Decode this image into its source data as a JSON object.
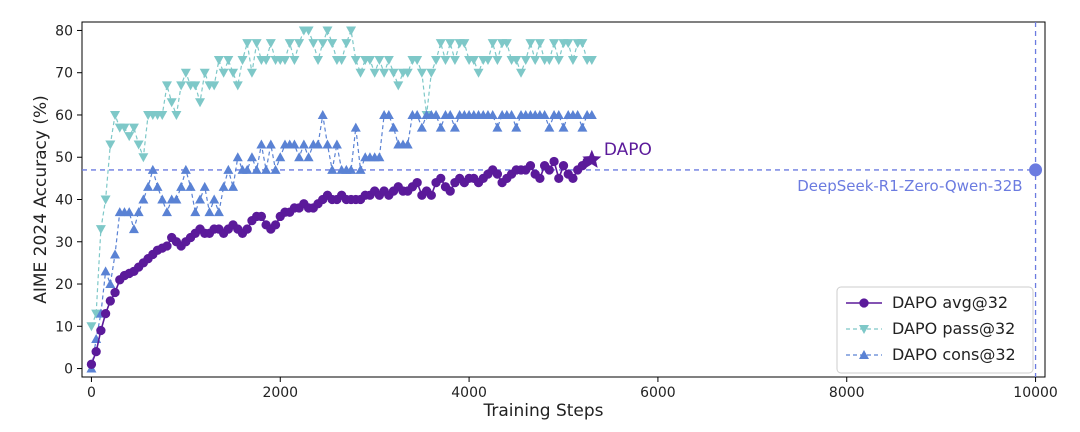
{
  "chart_data": {
    "type": "line",
    "xlabel": "Training Steps",
    "ylabel": "AIME 2024 Accuracy (%)",
    "xlim": [
      -100,
      10100
    ],
    "ylim": [
      -2,
      82
    ],
    "xticks": [
      0,
      2000,
      4000,
      6000,
      8000,
      10000
    ],
    "yticks": [
      0,
      10,
      20,
      30,
      40,
      50,
      60,
      70,
      80
    ],
    "grid": false,
    "legend_position": "lower-right",
    "series": [
      {
        "name": "DAPO avg@32",
        "color": "#5b1a9a",
        "line": "solid",
        "marker": "circle",
        "x": [
          0,
          50,
          100,
          150,
          200,
          250,
          300,
          350,
          400,
          450,
          500,
          550,
          600,
          650,
          700,
          750,
          800,
          850,
          900,
          950,
          1000,
          1050,
          1100,
          1150,
          1200,
          1250,
          1300,
          1350,
          1400,
          1450,
          1500,
          1550,
          1600,
          1650,
          1700,
          1750,
          1800,
          1850,
          1900,
          1950,
          2000,
          2050,
          2100,
          2150,
          2200,
          2250,
          2300,
          2350,
          2400,
          2450,
          2500,
          2550,
          2600,
          2650,
          2700,
          2750,
          2800,
          2850,
          2900,
          2950,
          3000,
          3050,
          3100,
          3150,
          3200,
          3250,
          3300,
          3350,
          3400,
          3450,
          3500,
          3550,
          3600,
          3650,
          3700,
          3750,
          3800,
          3850,
          3900,
          3950,
          4000,
          4050,
          4100,
          4150,
          4200,
          4250,
          4300,
          4350,
          4400,
          4450,
          4500,
          4550,
          4600,
          4650,
          4700,
          4750,
          4800,
          4850,
          4900,
          4950,
          5000,
          5050,
          5100,
          5150,
          5200,
          5250
        ],
        "values": [
          1,
          4,
          9,
          13,
          16,
          18,
          21,
          22,
          22.5,
          23,
          24,
          25,
          26,
          27,
          28,
          28.5,
          29,
          31,
          30,
          29,
          30,
          31,
          32,
          33,
          32,
          32,
          33,
          33,
          32,
          33,
          34,
          33,
          32,
          33,
          35,
          36,
          36,
          34,
          33,
          34,
          36,
          37,
          37,
          38,
          38,
          39,
          38,
          38,
          39,
          40,
          41,
          40,
          40,
          41,
          40,
          40,
          40,
          40,
          41,
          41,
          42,
          41,
          42,
          41,
          42,
          43,
          42,
          42,
          43,
          44,
          41,
          42,
          41,
          44,
          45,
          43,
          42,
          44,
          45,
          44,
          45,
          45,
          44,
          45,
          46,
          47,
          46,
          44,
          45,
          46,
          47,
          47,
          47,
          48,
          46,
          45,
          48,
          47,
          49,
          45,
          48,
          46,
          45,
          47,
          48,
          49
        ]
      },
      {
        "name": "DAPO pass@32",
        "color": "#7ec8c8",
        "line": "dashed",
        "marker": "triangle-down",
        "x": [
          0,
          50,
          100,
          150,
          200,
          250,
          300,
          350,
          400,
          450,
          500,
          550,
          600,
          650,
          700,
          750,
          800,
          850,
          900,
          950,
          1000,
          1050,
          1100,
          1150,
          1200,
          1250,
          1300,
          1350,
          1400,
          1450,
          1500,
          1550,
          1600,
          1650,
          1700,
          1750,
          1800,
          1850,
          1900,
          1950,
          2000,
          2050,
          2100,
          2150,
          2200,
          2250,
          2300,
          2350,
          2400,
          2450,
          2500,
          2550,
          2600,
          2650,
          2700,
          2750,
          2800,
          2850,
          2900,
          2950,
          3000,
          3050,
          3100,
          3150,
          3200,
          3250,
          3300,
          3350,
          3400,
          3450,
          3500,
          3550,
          3600,
          3650,
          3700,
          3750,
          3800,
          3850,
          3900,
          3950,
          4000,
          4050,
          4100,
          4150,
          4200,
          4250,
          4300,
          4350,
          4400,
          4450,
          4500,
          4550,
          4600,
          4650,
          4700,
          4750,
          4800,
          4850,
          4900,
          4950,
          5000,
          5050,
          5100,
          5150,
          5200,
          5250,
          5300
        ],
        "values": [
          10,
          13,
          33,
          40,
          53,
          60,
          57,
          57,
          55,
          57,
          53,
          50,
          60,
          60,
          60,
          60,
          67,
          63,
          60,
          67,
          70,
          67,
          67,
          63,
          70,
          67,
          67,
          73,
          70,
          73,
          70,
          67,
          73,
          77,
          70,
          77,
          73,
          73,
          77,
          73,
          73,
          73,
          77,
          73,
          77,
          80,
          80,
          77,
          73,
          77,
          80,
          77,
          73,
          73,
          77,
          80,
          73,
          70,
          73,
          73,
          70,
          73,
          70,
          73,
          70,
          67,
          70,
          70,
          73,
          73,
          70,
          60,
          70,
          73,
          77,
          73,
          77,
          73,
          77,
          77,
          73,
          73,
          70,
          73,
          73,
          77,
          73,
          77,
          77,
          73,
          73,
          70,
          73,
          77,
          73,
          77,
          73,
          73,
          77,
          73,
          77,
          77,
          73,
          77,
          77,
          73,
          73
        ]
      },
      {
        "name": "DAPO cons@32",
        "color": "#5a82d4",
        "line": "dashed",
        "marker": "triangle-up",
        "x": [
          0,
          50,
          100,
          150,
          200,
          250,
          300,
          350,
          400,
          450,
          500,
          550,
          600,
          650,
          700,
          750,
          800,
          850,
          900,
          950,
          1000,
          1050,
          1100,
          1150,
          1200,
          1250,
          1300,
          1350,
          1400,
          1450,
          1500,
          1550,
          1600,
          1650,
          1700,
          1750,
          1800,
          1850,
          1900,
          1950,
          2000,
          2050,
          2100,
          2150,
          2200,
          2250,
          2300,
          2350,
          2400,
          2450,
          2500,
          2550,
          2600,
          2650,
          2700,
          2750,
          2800,
          2850,
          2900,
          2950,
          3000,
          3050,
          3100,
          3150,
          3200,
          3250,
          3300,
          3350,
          3400,
          3450,
          3500,
          3550,
          3600,
          3650,
          3700,
          3750,
          3800,
          3850,
          3900,
          3950,
          4000,
          4050,
          4100,
          4150,
          4200,
          4250,
          4300,
          4350,
          4400,
          4450,
          4500,
          4550,
          4600,
          4650,
          4700,
          4750,
          4800,
          4850,
          4900,
          4950,
          5000,
          5050,
          5100,
          5150,
          5200,
          5250,
          5300
        ],
        "values": [
          0,
          7,
          13,
          23,
          20,
          27,
          37,
          37,
          37,
          33,
          37,
          40,
          43,
          47,
          43,
          40,
          37,
          40,
          40,
          43,
          47,
          43,
          37,
          40,
          43,
          37,
          40,
          37,
          43,
          47,
          43,
          50,
          47,
          47,
          50,
          47,
          53,
          47,
          53,
          47,
          50,
          53,
          53,
          53,
          50,
          53,
          50,
          53,
          53,
          60,
          53,
          47,
          53,
          47,
          47,
          47,
          57,
          47,
          50,
          50,
          50,
          50,
          60,
          60,
          57,
          53,
          53,
          53,
          60,
          60,
          57,
          60,
          60,
          60,
          57,
          60,
          60,
          57,
          60,
          60,
          60,
          60,
          60,
          60,
          60,
          60,
          57,
          60,
          60,
          60,
          57,
          60,
          60,
          60,
          60,
          60,
          60,
          57,
          60,
          60,
          57,
          60,
          60,
          60,
          57,
          60,
          60
        ]
      }
    ],
    "annotations": [
      {
        "text": "DAPO",
        "x": 5300,
        "y": 49.4,
        "color": "#5b1a9a",
        "marker": "star"
      },
      {
        "text": "DeepSeek-R1-Zero-Qwen-32B",
        "x": 10000,
        "y": 47,
        "color": "#6b7be0",
        "marker": "circle"
      }
    ],
    "reference_lines": [
      {
        "orientation": "horizontal",
        "value": 47,
        "color": "#6b7be0",
        "style": "dashed"
      },
      {
        "orientation": "vertical",
        "value": 10000,
        "color": "#6b7be0",
        "style": "dashed"
      }
    ]
  }
}
